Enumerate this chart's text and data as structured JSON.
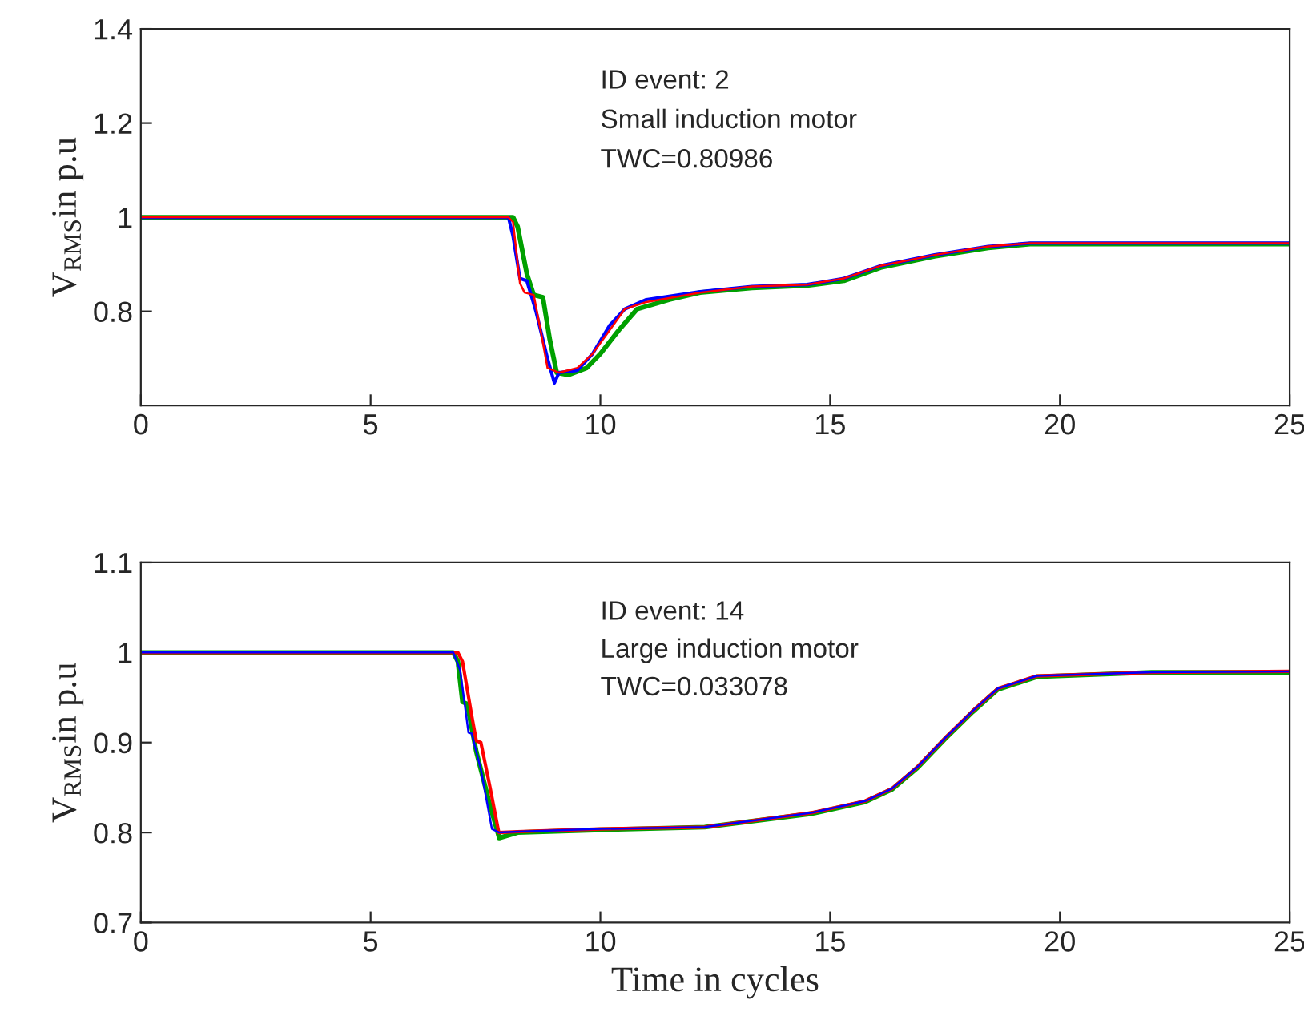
{
  "chart_data": [
    {
      "type": "line",
      "ylabel": "V$_{RMS}$in p.u",
      "xlim": [
        0,
        25
      ],
      "xticks": [
        0,
        5,
        10,
        15,
        20,
        25
      ],
      "ylim": [
        0.6,
        1.4
      ],
      "yticks": [
        0.8,
        1,
        1.2,
        1.4
      ],
      "annotations": [
        "ID event: 2",
        "Small induction motor",
        "TWC=0.80986"
      ],
      "series": [
        {
          "color": "#00a000",
          "x": [
            0,
            8.1,
            8.2,
            8.4,
            8.55,
            8.75,
            8.9,
            9.05,
            9.3,
            9.7,
            10.0,
            10.4,
            10.8,
            11.5,
            12.17,
            13.3,
            14.5,
            15.3,
            16.1,
            17.27,
            18.44,
            19.35,
            25
          ],
          "values": [
            1,
            1,
            0.98,
            0.88,
            0.835,
            0.83,
            0.74,
            0.67,
            0.665,
            0.68,
            0.71,
            0.76,
            0.805,
            0.825,
            0.84,
            0.85,
            0.855,
            0.865,
            0.893,
            0.917,
            0.935,
            0.943,
            0.943
          ]
        },
        {
          "color": "#0000ff",
          "x": [
            0,
            8.0,
            8.1,
            8.25,
            8.4,
            8.6,
            8.85,
            9.0,
            9.1,
            9.5,
            9.83,
            10.2,
            10.53,
            11,
            12.17,
            13.3,
            14.5,
            15.3,
            16.1,
            17.27,
            18.44,
            19.35,
            25
          ],
          "values": [
            1,
            1,
            0.96,
            0.87,
            0.865,
            0.8,
            0.7,
            0.648,
            0.67,
            0.675,
            0.71,
            0.77,
            0.805,
            0.825,
            0.842,
            0.853,
            0.857,
            0.87,
            0.897,
            0.92,
            0.938,
            0.945,
            0.945
          ]
        },
        {
          "color": "#ff0000",
          "x": [
            0,
            8.0,
            8.1,
            8.25,
            8.35,
            8.55,
            8.7,
            8.85,
            9.1,
            9.5,
            9.83,
            10.2,
            10.53,
            11,
            12.17,
            13.3,
            14.5,
            15.3,
            16.1,
            17.27,
            18.44,
            19.35,
            25
          ],
          "values": [
            1,
            1,
            0.99,
            0.86,
            0.84,
            0.835,
            0.76,
            0.68,
            0.67,
            0.68,
            0.71,
            0.76,
            0.805,
            0.82,
            0.84,
            0.853,
            0.857,
            0.87,
            0.897,
            0.92,
            0.938,
            0.945,
            0.945
          ]
        }
      ]
    },
    {
      "type": "line",
      "ylabel": "V$_{RMS}$in p.u",
      "xlabel": "Time in cycles",
      "xlim": [
        0,
        25
      ],
      "xticks": [
        0,
        5,
        10,
        15,
        20,
        25
      ],
      "ylim": [
        0.7,
        1.1
      ],
      "yticks": [
        0.7,
        0.8,
        0.9,
        1,
        1.1
      ],
      "annotations": [
        "ID event: 14",
        "Large induction motor",
        "TWC=0.033078"
      ],
      "series": [
        {
          "color": "#00a000",
          "x": [
            0,
            6.8,
            6.9,
            7.0,
            7.1,
            7.3,
            7.6,
            7.8,
            8.2,
            10,
            12.27,
            14.6,
            15.76,
            16.35,
            16.9,
            17.5,
            18.1,
            18.65,
            19.5,
            22,
            25
          ],
          "values": [
            1,
            1,
            0.99,
            0.945,
            0.943,
            0.89,
            0.83,
            0.794,
            0.8,
            0.803,
            0.806,
            0.821,
            0.834,
            0.848,
            0.872,
            0.904,
            0.934,
            0.959,
            0.973,
            0.978,
            0.978
          ]
        },
        {
          "color": "#ff0000",
          "x": [
            0,
            6.9,
            7.0,
            7.2,
            7.3,
            7.4,
            7.6,
            7.79,
            8.2,
            10,
            12.27,
            14.6,
            15.76,
            16.35,
            16.9,
            17.5,
            18.1,
            18.65,
            19.5,
            22,
            25
          ],
          "values": [
            1,
            1,
            0.99,
            0.93,
            0.902,
            0.9,
            0.85,
            0.8,
            0.801,
            0.804,
            0.806,
            0.822,
            0.835,
            0.849,
            0.873,
            0.905,
            0.935,
            0.96,
            0.974,
            0.978,
            0.979
          ]
        },
        {
          "color": "#0000ff",
          "x": [
            0,
            6.8,
            6.95,
            7.13,
            7.2,
            7.4,
            7.64,
            7.8,
            8.2,
            10,
            12.27,
            14.6,
            15.76,
            16.35,
            16.9,
            17.5,
            18.1,
            18.65,
            19.5,
            22,
            25
          ],
          "values": [
            1,
            1,
            0.98,
            0.911,
            0.91,
            0.87,
            0.804,
            0.8,
            0.801,
            0.804,
            0.806,
            0.822,
            0.835,
            0.849,
            0.873,
            0.905,
            0.935,
            0.96,
            0.974,
            0.978,
            0.979
          ]
        }
      ]
    }
  ]
}
